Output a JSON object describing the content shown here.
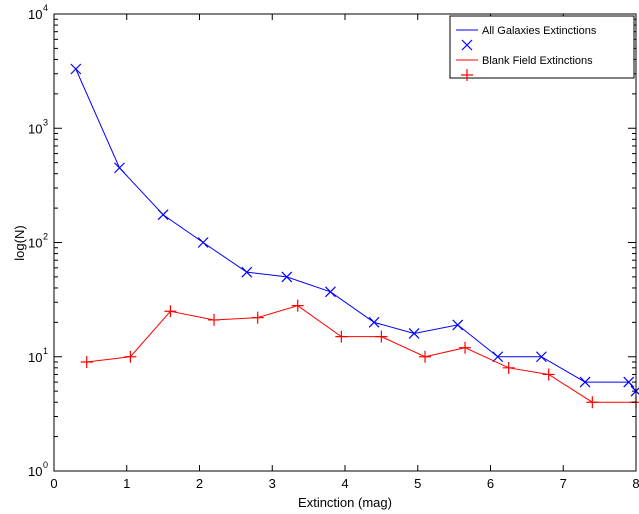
{
  "chart_data": {
    "type": "line",
    "title": "",
    "xlabel": "Extinction (mag)",
    "ylabel": "log(N)",
    "xlim": [
      0,
      8
    ],
    "ylim": [
      1,
      10000
    ],
    "yscale": "log",
    "x_ticks": [
      0,
      1,
      2,
      3,
      4,
      5,
      6,
      7,
      8
    ],
    "x_tick_labels": [
      "0",
      "1",
      "2",
      "3",
      "4",
      "5",
      "6",
      "7",
      "8"
    ],
    "y_ticks": [
      1,
      10,
      100,
      1000,
      10000
    ],
    "y_tick_base": "10",
    "y_tick_exponents": [
      "0",
      "1",
      "2",
      "3",
      "4"
    ],
    "grid": false,
    "legend_position": "top-right",
    "series": [
      {
        "name": "All Galaxies Extinctions",
        "color": "#0000ff",
        "marker": "x",
        "x": [
          0.3,
          0.9,
          1.5,
          2.05,
          2.65,
          3.2,
          3.8,
          4.4,
          4.95,
          5.55,
          6.1,
          6.7,
          7.3,
          7.9,
          8.0
        ],
        "y": [
          3300,
          450,
          175,
          100,
          55,
          50,
          37,
          20,
          16,
          19,
          10,
          10,
          6,
          6,
          5
        ]
      },
      {
        "name": "Blank Field Extinctions",
        "color": "#ff0000",
        "marker": "+",
        "x": [
          0.45,
          1.05,
          1.6,
          2.2,
          2.8,
          3.35,
          3.95,
          4.5,
          5.1,
          5.65,
          6.25,
          6.8,
          7.4,
          8.0
        ],
        "y": [
          9,
          10,
          25,
          21,
          22,
          28,
          15,
          15,
          10,
          12,
          8,
          7,
          4,
          4
        ]
      }
    ]
  }
}
